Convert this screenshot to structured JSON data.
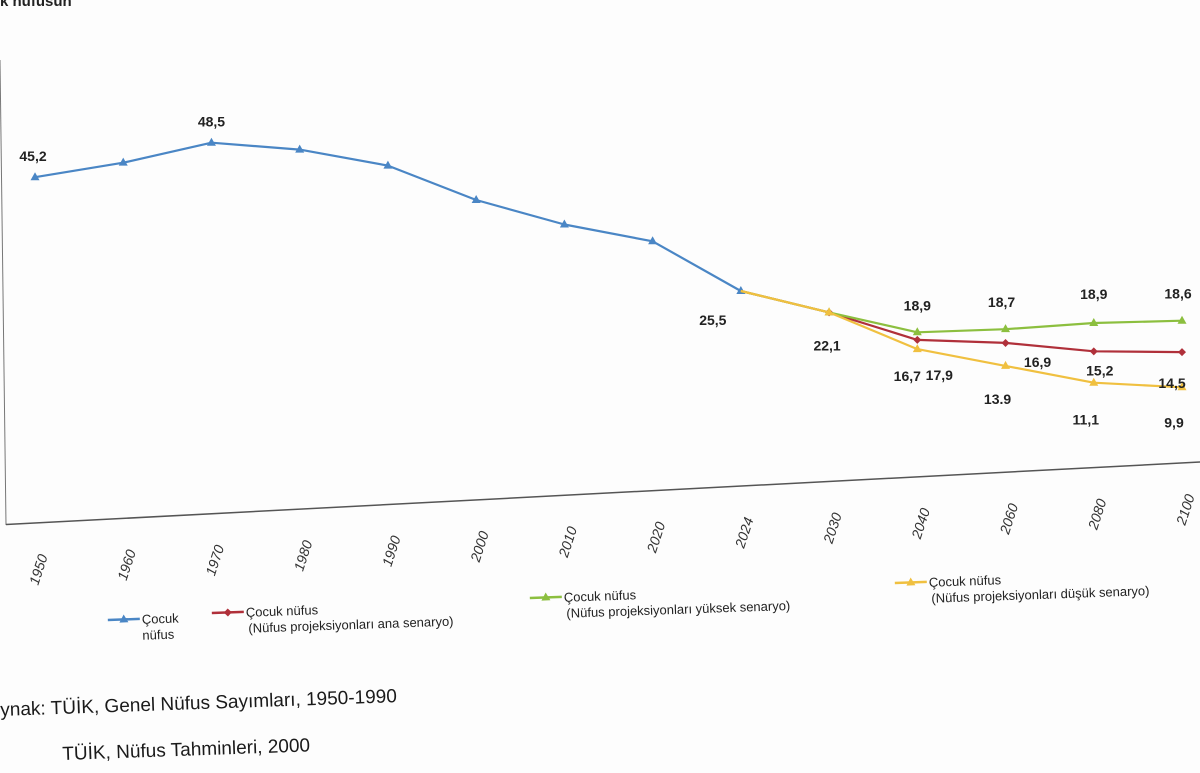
{
  "header": {
    "title_fragment": "k nüfusun"
  },
  "chart_data": {
    "type": "line",
    "categories": [
      "1950",
      "1960",
      "1970",
      "1980",
      "1990",
      "2000",
      "2010",
      "2020",
      "2024",
      "2030",
      "2040",
      "2060",
      "2080",
      "2100"
    ],
    "series": [
      {
        "name": "Çocuk nüfus",
        "color": "#4a86c5",
        "values": [
          45.2,
          46.5,
          48.5,
          47.0,
          44.3,
          39.2,
          35.4,
          32.6,
          25.5,
          null,
          null,
          null,
          null,
          null
        ],
        "labels": [
          {
            "i": 0,
            "text": "45,2"
          },
          {
            "i": 2,
            "text": "48,5"
          },
          {
            "i": 8,
            "text": "25,5"
          }
        ]
      },
      {
        "name": "Çocuk nüfus (Nüfus projeksiyonları ana senaryo)",
        "color": "#b0303a",
        "values": [
          null,
          null,
          null,
          null,
          null,
          null,
          null,
          null,
          25.5,
          22.1,
          17.9,
          16.9,
          15.2,
          14.5
        ],
        "labels": [
          {
            "i": 9,
            "text": "22,1"
          },
          {
            "i": 10,
            "text": "17,9"
          },
          {
            "i": 11,
            "text": "16,9"
          },
          {
            "i": 12,
            "text": "15,2"
          },
          {
            "i": 13,
            "text": "14,5"
          }
        ]
      },
      {
        "name": "Çocuk nüfus (Nüfus projeksiyonları yüksek senaryo)",
        "color": "#8cbf3f",
        "values": [
          null,
          null,
          null,
          null,
          null,
          null,
          null,
          null,
          25.5,
          22.1,
          18.9,
          18.7,
          18.9,
          18.6
        ],
        "labels": [
          {
            "i": 10,
            "text": "18,9"
          },
          {
            "i": 11,
            "text": "18,7"
          },
          {
            "i": 12,
            "text": "18,9"
          },
          {
            "i": 13,
            "text": "18,6"
          }
        ]
      },
      {
        "name": "Çocuk nüfus (Nüfus projeksiyonları düşük senaryo)",
        "color": "#f0c040",
        "values": [
          null,
          null,
          null,
          null,
          null,
          null,
          null,
          null,
          25.5,
          22.1,
          16.7,
          13.9,
          11.1,
          9.9
        ],
        "labels": [
          {
            "i": 10,
            "text": "16,7"
          },
          {
            "i": 11,
            "text": "13.9"
          },
          {
            "i": 12,
            "text": "11,1"
          },
          {
            "i": 13,
            "text": "9,9"
          }
        ]
      }
    ],
    "legend": [
      {
        "line1": "Çocuk",
        "line2": "nüfus",
        "color": "#4a86c5"
      },
      {
        "line1": "Çocuk nüfus",
        "line2": "(Nüfus projeksiyonları ana senaryo)",
        "color": "#b0303a"
      },
      {
        "line1": "Çocuk nüfus",
        "line2": "(Nüfus projeksiyonları yüksek senaryo)",
        "color": "#8cbf3f"
      },
      {
        "line1": "Çocuk nüfus",
        "line2": "(Nüfus projeksiyonları düşük senaryo)",
        "color": "#f0c040"
      }
    ],
    "legend_position": "bottom",
    "grid": false
  },
  "sources": [
    "ynak: TÜİK, Genel Nüfus Sayımları, 1950-1990",
    "TÜİK, Nüfus Tahminleri, 2000"
  ]
}
